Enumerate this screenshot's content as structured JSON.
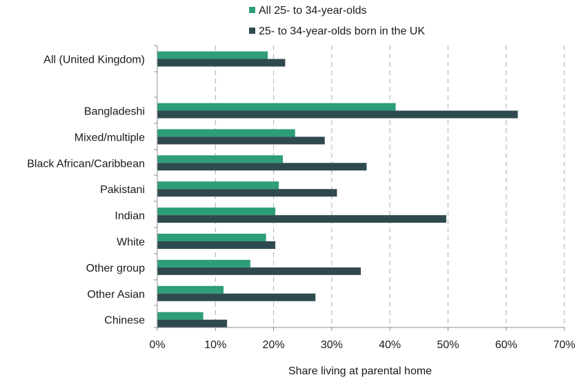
{
  "chart_data": {
    "type": "bar",
    "orientation": "horizontal",
    "xlabel": "Share living at parental home",
    "categories": [
      "All (United Kingdom)",
      "",
      "Bangladeshi",
      "Mixed/multiple",
      "Black African/Caribbean",
      "Pakistani",
      "Indian",
      "White",
      "Other group",
      "Other Asian",
      "Chinese"
    ],
    "series": [
      {
        "name": "All 25- to 34-year-olds",
        "color": "#2e9e78",
        "values": [
          0.19,
          null,
          0.41,
          0.237,
          0.216,
          0.209,
          0.203,
          0.187,
          0.16,
          0.114,
          0.079
        ]
      },
      {
        "name": "25- to 34-year-olds born in the UK",
        "color": "#2f4a4f",
        "values": [
          0.22,
          null,
          0.62,
          0.288,
          0.36,
          0.309,
          0.497,
          0.203,
          0.35,
          0.272,
          0.12
        ]
      }
    ],
    "xlim": [
      0,
      0.7
    ],
    "xticks": [
      0,
      0.1,
      0.2,
      0.3,
      0.4,
      0.5,
      0.6,
      0.7
    ],
    "xtick_labels": [
      "0%",
      "10%",
      "20%",
      "30%",
      "40%",
      "50%",
      "60%",
      "70%"
    ],
    "grid": "vertical dashed",
    "legend_position": "top-center"
  }
}
